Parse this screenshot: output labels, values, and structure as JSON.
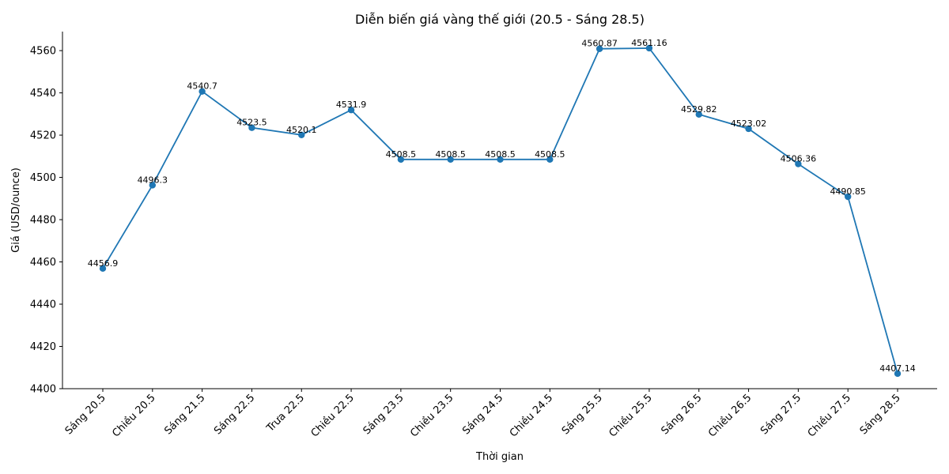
{
  "chart_data": {
    "type": "line",
    "title": "Diễn biến giá vàng thế giới (20.5 - Sáng 28.5)",
    "xlabel": "Thời gian",
    "ylabel": "Giá (USD/ounce)",
    "categories": [
      "Sáng 20.5",
      "Chiều 20.5",
      "Sáng 21.5",
      "Sáng 22.5",
      "Trưa 22.5",
      "Chiều 22.5",
      "Sáng 23.5",
      "Chiều 23.5",
      "Sáng 24.5",
      "Chiều 24.5",
      "Sáng 25.5",
      "Chiều 25.5",
      "Sáng 26.5",
      "Chiều 26.5",
      "Sáng 27.5",
      "Chiều 27.5",
      "Sáng 28.5"
    ],
    "values": [
      4456.9,
      4496.3,
      4540.7,
      4523.5,
      4520.1,
      4531.9,
      4508.5,
      4508.5,
      4508.5,
      4508.5,
      4560.87,
      4561.16,
      4529.82,
      4523.02,
      4506.36,
      4490.85,
      4407.14
    ],
    "value_labels": [
      "4456.9",
      "4496.3",
      "4540.7",
      "4523.5",
      "4520.1",
      "4531.9",
      "4508.5",
      "4508.5",
      "4508.5",
      "4508.5",
      "4560.87",
      "4561.16",
      "4529.82",
      "4523.02",
      "4506.36",
      "4490.85",
      "4407.14"
    ],
    "ylim": [
      4400,
      4569
    ],
    "yticks": [
      4400,
      4420,
      4440,
      4460,
      4480,
      4500,
      4520,
      4540,
      4560
    ],
    "grid": false,
    "color": "#1f77b4"
  }
}
